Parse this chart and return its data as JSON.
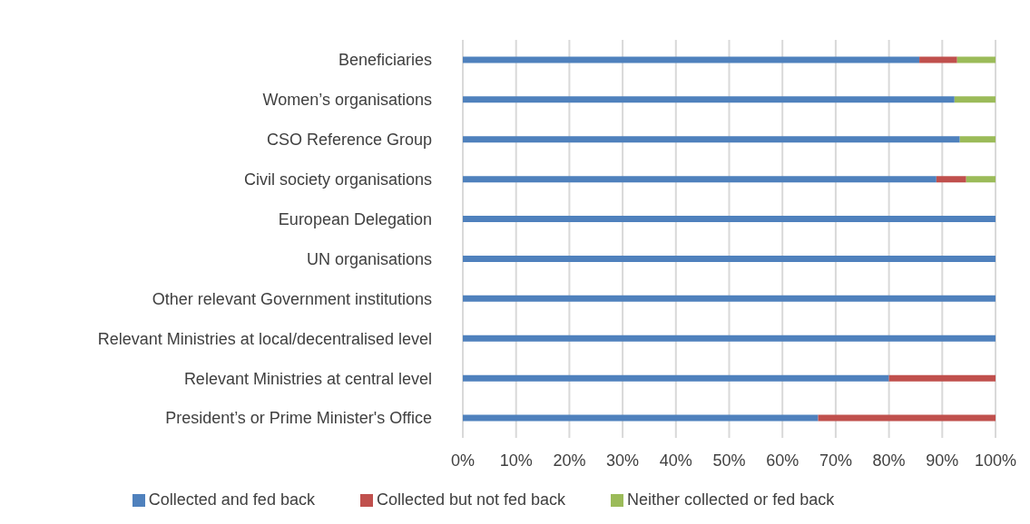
{
  "chart_data": {
    "type": "bar",
    "orientation": "horizontal",
    "stacked": true,
    "categories": [
      "Beneficiaries",
      "Women’s organisations",
      "CSO Reference Group",
      "Civil society organisations",
      "European Delegation",
      "UN organisations",
      "Other relevant Government institutions",
      "Relevant Ministries at local/decentralised level",
      "Relevant Ministries at central level",
      "President’s or Prime Minister's Office"
    ],
    "series": [
      {
        "name": "Collected and fed back",
        "color": "#4f81bd",
        "values": [
          85.7,
          92.3,
          93.3,
          88.9,
          100,
          100,
          100,
          100,
          80,
          66.7
        ]
      },
      {
        "name": "Collected but not fed back",
        "color": "#c0504d",
        "values": [
          7.1,
          0,
          0,
          5.6,
          0,
          0,
          0,
          0,
          20,
          33.3
        ]
      },
      {
        "name": "Neither collected or fed back",
        "color": "#9bbb59",
        "values": [
          7.2,
          7.7,
          6.7,
          5.5,
          0,
          0,
          0,
          0,
          0,
          0
        ]
      }
    ],
    "xlim": [
      0,
      100
    ],
    "xticks": [
      {
        "value": 0,
        "label": "0%"
      },
      {
        "value": 10,
        "label": "10%"
      },
      {
        "value": 20,
        "label": "20%"
      },
      {
        "value": 30,
        "label": "30%"
      },
      {
        "value": 40,
        "label": "40%"
      },
      {
        "value": 50,
        "label": "50%"
      },
      {
        "value": 60,
        "label": "60%"
      },
      {
        "value": 70,
        "label": "70%"
      },
      {
        "value": 80,
        "label": "80%"
      },
      {
        "value": 90,
        "label": "90%"
      },
      {
        "value": 100,
        "label": "100%"
      }
    ],
    "grid": "x",
    "legend": "bottom"
  }
}
